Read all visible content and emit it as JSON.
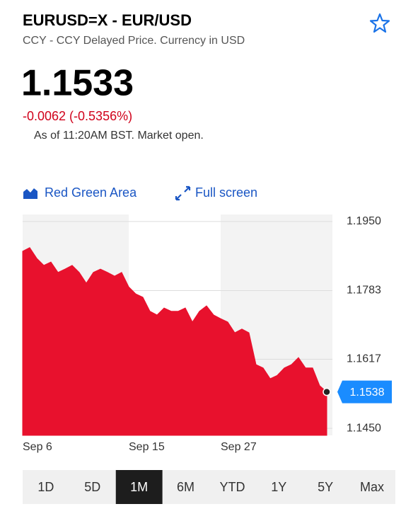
{
  "header": {
    "title": "EURUSD=X - EUR/USD",
    "subtitle": "CCY - CCY Delayed Price. Currency in USD",
    "price": "1.1533",
    "change": "-0.0062 (-0.5356%)",
    "as_of": "As of 11:20AM BST. Market open."
  },
  "toolbar": {
    "chart_style": "Red Green Area",
    "full_screen": "Full screen"
  },
  "ranges": [
    "1D",
    "5D",
    "1M",
    "6M",
    "YTD",
    "1Y",
    "5Y",
    "Max"
  ],
  "selected_range": "1M",
  "chart_data": {
    "type": "area",
    "categories": [
      "Sep 6",
      null,
      null,
      null,
      null,
      null,
      null,
      null,
      null,
      null,
      null,
      null,
      null,
      null,
      null,
      "Sep 15",
      null,
      null,
      null,
      null,
      null,
      null,
      null,
      null,
      null,
      null,
      null,
      null,
      "Sep 27",
      null,
      null,
      null,
      null,
      null,
      null,
      null,
      null,
      null,
      null,
      null,
      null,
      null,
      null,
      null
    ],
    "series": [
      {
        "color": "#e8112d",
        "values": [
          1.1878,
          1.1887,
          1.1861,
          1.1844,
          1.1852,
          1.1827,
          1.1835,
          1.1844,
          1.1827,
          1.1801,
          1.1827,
          1.1835,
          1.1827,
          1.1818,
          1.1827,
          1.1792,
          1.1775,
          1.1767,
          1.1733,
          1.1724,
          1.1741,
          1.1733,
          1.1733,
          1.1741,
          1.1707,
          1.1733,
          1.1746,
          1.1724,
          1.1715,
          1.1707,
          1.1681,
          1.169,
          1.1681,
          1.1604,
          1.1596,
          1.157,
          1.1578,
          1.1596,
          1.1604,
          1.1621,
          1.1596,
          1.1596,
          1.1553,
          1.1538
        ]
      }
    ],
    "ylim": [
      1.1433,
      1.1967
    ],
    "yticks": [
      {
        "value": 1.195,
        "label": "1.1950"
      },
      1.1783,
      1.1617,
      {
        "value": 1.145,
        "label": "1.1450"
      }
    ],
    "grid": true,
    "axis_side": "right"
  }
}
